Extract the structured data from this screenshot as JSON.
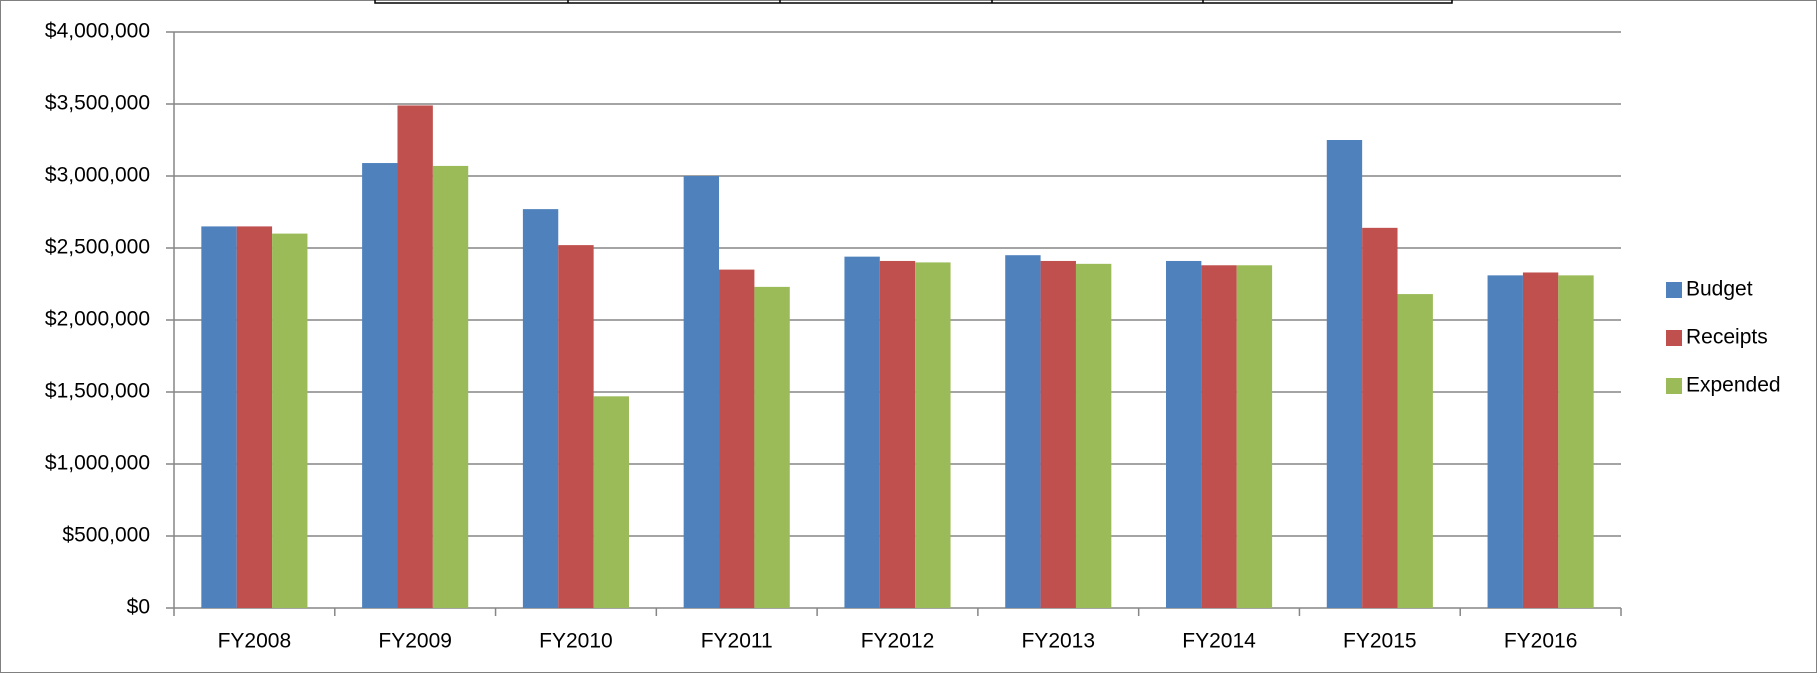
{
  "chart_data": {
    "type": "bar",
    "categories": [
      "FY2008",
      "FY2009",
      "FY2010",
      "FY2011",
      "FY2012",
      "FY2013",
      "FY2014",
      "FY2015",
      "FY2016"
    ],
    "series": [
      {
        "name": "Budget",
        "color": "#4f81bd",
        "values": [
          2650000,
          3090000,
          2770000,
          3000000,
          2440000,
          2450000,
          2410000,
          3250000,
          2310000
        ]
      },
      {
        "name": "Receipts",
        "color": "#c0504d",
        "values": [
          2650000,
          3490000,
          2520000,
          2350000,
          2410000,
          2410000,
          2380000,
          2640000,
          2330000
        ]
      },
      {
        "name": "Expended",
        "color": "#9bbb59",
        "values": [
          2600000,
          3070000,
          1470000,
          2230000,
          2400000,
          2390000,
          2380000,
          2180000,
          2310000
        ]
      }
    ],
    "ylim": [
      0,
      4000000
    ],
    "yticks": [
      {
        "value": 0,
        "label": "$0"
      },
      {
        "value": 500000,
        "label": "$500,000"
      },
      {
        "value": 1000000,
        "label": "$1,000,000"
      },
      {
        "value": 1500000,
        "label": "$1,500,000"
      },
      {
        "value": 2000000,
        "label": "$2,000,000"
      },
      {
        "value": 2500000,
        "label": "$2,500,000"
      },
      {
        "value": 3000000,
        "label": "$3,000,000"
      },
      {
        "value": 3500000,
        "label": "$3,500,000"
      },
      {
        "value": 4000000,
        "label": "$4,000,000"
      }
    ],
    "grid": true,
    "legend": "right"
  }
}
